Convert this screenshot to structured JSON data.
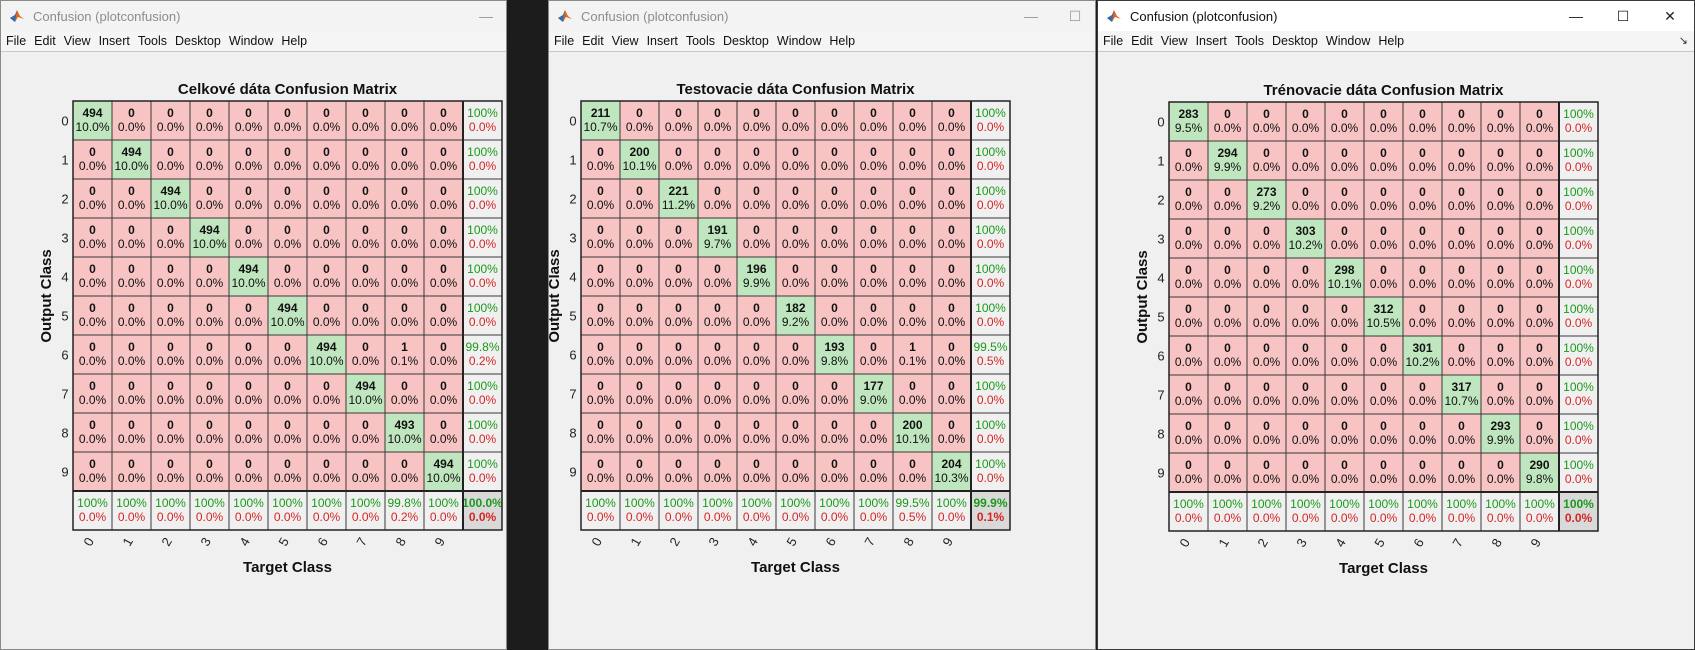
{
  "windows": [
    {
      "title": "Confusion (plotconfusion)",
      "active": false,
      "menu": [
        "File",
        "Edit",
        "View",
        "Insert",
        "Tools",
        "Desktop",
        "Window",
        "Help"
      ],
      "chart_data": {
        "type": "heatmap",
        "title": "Celkové dáta Confusion Matrix",
        "xlabel": "Target Class",
        "ylabel": "Output Class",
        "class_labels": [
          "0",
          "1",
          "2",
          "3",
          "4",
          "5",
          "6",
          "7",
          "8",
          "9"
        ],
        "counts": [
          [
            494,
            0,
            0,
            0,
            0,
            0,
            0,
            0,
            0,
            0
          ],
          [
            0,
            494,
            0,
            0,
            0,
            0,
            0,
            0,
            0,
            0
          ],
          [
            0,
            0,
            494,
            0,
            0,
            0,
            0,
            0,
            0,
            0
          ],
          [
            0,
            0,
            0,
            494,
            0,
            0,
            0,
            0,
            0,
            0
          ],
          [
            0,
            0,
            0,
            0,
            494,
            0,
            0,
            0,
            0,
            0
          ],
          [
            0,
            0,
            0,
            0,
            0,
            494,
            0,
            0,
            0,
            0
          ],
          [
            0,
            0,
            0,
            0,
            0,
            0,
            494,
            0,
            1,
            0
          ],
          [
            0,
            0,
            0,
            0,
            0,
            0,
            0,
            494,
            0,
            0
          ],
          [
            0,
            0,
            0,
            0,
            0,
            0,
            0,
            0,
            493,
            0
          ],
          [
            0,
            0,
            0,
            0,
            0,
            0,
            0,
            0,
            0,
            494
          ]
        ],
        "percents": [
          [
            "10.0%",
            "0.0%",
            "0.0%",
            "0.0%",
            "0.0%",
            "0.0%",
            "0.0%",
            "0.0%",
            "0.0%",
            "0.0%"
          ],
          [
            "0.0%",
            "10.0%",
            "0.0%",
            "0.0%",
            "0.0%",
            "0.0%",
            "0.0%",
            "0.0%",
            "0.0%",
            "0.0%"
          ],
          [
            "0.0%",
            "0.0%",
            "10.0%",
            "0.0%",
            "0.0%",
            "0.0%",
            "0.0%",
            "0.0%",
            "0.0%",
            "0.0%"
          ],
          [
            "0.0%",
            "0.0%",
            "0.0%",
            "10.0%",
            "0.0%",
            "0.0%",
            "0.0%",
            "0.0%",
            "0.0%",
            "0.0%"
          ],
          [
            "0.0%",
            "0.0%",
            "0.0%",
            "0.0%",
            "10.0%",
            "0.0%",
            "0.0%",
            "0.0%",
            "0.0%",
            "0.0%"
          ],
          [
            "0.0%",
            "0.0%",
            "0.0%",
            "0.0%",
            "0.0%",
            "10.0%",
            "0.0%",
            "0.0%",
            "0.0%",
            "0.0%"
          ],
          [
            "0.0%",
            "0.0%",
            "0.0%",
            "0.0%",
            "0.0%",
            "0.0%",
            "10.0%",
            "0.0%",
            "0.1%",
            "0.0%"
          ],
          [
            "0.0%",
            "0.0%",
            "0.0%",
            "0.0%",
            "0.0%",
            "0.0%",
            "0.0%",
            "10.0%",
            "0.0%",
            "0.0%"
          ],
          [
            "0.0%",
            "0.0%",
            "0.0%",
            "0.0%",
            "0.0%",
            "0.0%",
            "0.0%",
            "0.0%",
            "10.0%",
            "0.0%"
          ],
          [
            "0.0%",
            "0.0%",
            "0.0%",
            "0.0%",
            "0.0%",
            "0.0%",
            "0.0%",
            "0.0%",
            "0.0%",
            "10.0%"
          ]
        ],
        "row_summary": [
          [
            "100%",
            "0.0%"
          ],
          [
            "100%",
            "0.0%"
          ],
          [
            "100%",
            "0.0%"
          ],
          [
            "100%",
            "0.0%"
          ],
          [
            "100%",
            "0.0%"
          ],
          [
            "100%",
            "0.0%"
          ],
          [
            "99.8%",
            "0.2%"
          ],
          [
            "100%",
            "0.0%"
          ],
          [
            "100%",
            "0.0%"
          ],
          [
            "100%",
            "0.0%"
          ]
        ],
        "col_summary": [
          [
            "100%",
            "0.0%"
          ],
          [
            "100%",
            "0.0%"
          ],
          [
            "100%",
            "0.0%"
          ],
          [
            "100%",
            "0.0%"
          ],
          [
            "100%",
            "0.0%"
          ],
          [
            "100%",
            "0.0%"
          ],
          [
            "100%",
            "0.0%"
          ],
          [
            "100%",
            "0.0%"
          ],
          [
            "99.8%",
            "0.2%"
          ],
          [
            "100%",
            "0.0%"
          ]
        ],
        "overall": [
          "100.0%",
          "0.0%"
        ]
      }
    },
    {
      "title": "Confusion (plotconfusion)",
      "active": false,
      "menu": [
        "File",
        "Edit",
        "View",
        "Insert",
        "Tools",
        "Desktop",
        "Window",
        "Help"
      ],
      "chart_data": {
        "type": "heatmap",
        "title": "Testovacie dáta Confusion Matrix",
        "xlabel": "Target Class",
        "ylabel": "Output Class",
        "class_labels": [
          "0",
          "1",
          "2",
          "3",
          "4",
          "5",
          "6",
          "7",
          "8",
          "9"
        ],
        "counts": [
          [
            211,
            0,
            0,
            0,
            0,
            0,
            0,
            0,
            0,
            0
          ],
          [
            0,
            200,
            0,
            0,
            0,
            0,
            0,
            0,
            0,
            0
          ],
          [
            0,
            0,
            221,
            0,
            0,
            0,
            0,
            0,
            0,
            0
          ],
          [
            0,
            0,
            0,
            191,
            0,
            0,
            0,
            0,
            0,
            0
          ],
          [
            0,
            0,
            0,
            0,
            196,
            0,
            0,
            0,
            0,
            0
          ],
          [
            0,
            0,
            0,
            0,
            0,
            182,
            0,
            0,
            0,
            0
          ],
          [
            0,
            0,
            0,
            0,
            0,
            0,
            193,
            0,
            1,
            0
          ],
          [
            0,
            0,
            0,
            0,
            0,
            0,
            0,
            177,
            0,
            0
          ],
          [
            0,
            0,
            0,
            0,
            0,
            0,
            0,
            0,
            200,
            0
          ],
          [
            0,
            0,
            0,
            0,
            0,
            0,
            0,
            0,
            0,
            204
          ]
        ],
        "percents": [
          [
            "10.7%",
            "0.0%",
            "0.0%",
            "0.0%",
            "0.0%",
            "0.0%",
            "0.0%",
            "0.0%",
            "0.0%",
            "0.0%"
          ],
          [
            "0.0%",
            "10.1%",
            "0.0%",
            "0.0%",
            "0.0%",
            "0.0%",
            "0.0%",
            "0.0%",
            "0.0%",
            "0.0%"
          ],
          [
            "0.0%",
            "0.0%",
            "11.2%",
            "0.0%",
            "0.0%",
            "0.0%",
            "0.0%",
            "0.0%",
            "0.0%",
            "0.0%"
          ],
          [
            "0.0%",
            "0.0%",
            "0.0%",
            "9.7%",
            "0.0%",
            "0.0%",
            "0.0%",
            "0.0%",
            "0.0%",
            "0.0%"
          ],
          [
            "0.0%",
            "0.0%",
            "0.0%",
            "0.0%",
            "9.9%",
            "0.0%",
            "0.0%",
            "0.0%",
            "0.0%",
            "0.0%"
          ],
          [
            "0.0%",
            "0.0%",
            "0.0%",
            "0.0%",
            "0.0%",
            "9.2%",
            "0.0%",
            "0.0%",
            "0.0%",
            "0.0%"
          ],
          [
            "0.0%",
            "0.0%",
            "0.0%",
            "0.0%",
            "0.0%",
            "0.0%",
            "9.8%",
            "0.0%",
            "0.1%",
            "0.0%"
          ],
          [
            "0.0%",
            "0.0%",
            "0.0%",
            "0.0%",
            "0.0%",
            "0.0%",
            "0.0%",
            "9.0%",
            "0.0%",
            "0.0%"
          ],
          [
            "0.0%",
            "0.0%",
            "0.0%",
            "0.0%",
            "0.0%",
            "0.0%",
            "0.0%",
            "0.0%",
            "10.1%",
            "0.0%"
          ],
          [
            "0.0%",
            "0.0%",
            "0.0%",
            "0.0%",
            "0.0%",
            "0.0%",
            "0.0%",
            "0.0%",
            "0.0%",
            "10.3%"
          ]
        ],
        "row_summary": [
          [
            "100%",
            "0.0%"
          ],
          [
            "100%",
            "0.0%"
          ],
          [
            "100%",
            "0.0%"
          ],
          [
            "100%",
            "0.0%"
          ],
          [
            "100%",
            "0.0%"
          ],
          [
            "100%",
            "0.0%"
          ],
          [
            "99.5%",
            "0.5%"
          ],
          [
            "100%",
            "0.0%"
          ],
          [
            "100%",
            "0.0%"
          ],
          [
            "100%",
            "0.0%"
          ]
        ],
        "col_summary": [
          [
            "100%",
            "0.0%"
          ],
          [
            "100%",
            "0.0%"
          ],
          [
            "100%",
            "0.0%"
          ],
          [
            "100%",
            "0.0%"
          ],
          [
            "100%",
            "0.0%"
          ],
          [
            "100%",
            "0.0%"
          ],
          [
            "100%",
            "0.0%"
          ],
          [
            "100%",
            "0.0%"
          ],
          [
            "99.5%",
            "0.5%"
          ],
          [
            "100%",
            "0.0%"
          ]
        ],
        "overall": [
          "99.9%",
          "0.1%"
        ]
      }
    },
    {
      "title": "Confusion (plotconfusion)",
      "active": true,
      "menu": [
        "File",
        "Edit",
        "View",
        "Insert",
        "Tools",
        "Desktop",
        "Window",
        "Help"
      ],
      "chart_data": {
        "type": "heatmap",
        "title": "Trénovacie dáta Confusion Matrix",
        "xlabel": "Target Class",
        "ylabel": "Output Class",
        "class_labels": [
          "0",
          "1",
          "2",
          "3",
          "4",
          "5",
          "6",
          "7",
          "8",
          "9"
        ],
        "counts": [
          [
            283,
            0,
            0,
            0,
            0,
            0,
            0,
            0,
            0,
            0
          ],
          [
            0,
            294,
            0,
            0,
            0,
            0,
            0,
            0,
            0,
            0
          ],
          [
            0,
            0,
            273,
            0,
            0,
            0,
            0,
            0,
            0,
            0
          ],
          [
            0,
            0,
            0,
            303,
            0,
            0,
            0,
            0,
            0,
            0
          ],
          [
            0,
            0,
            0,
            0,
            298,
            0,
            0,
            0,
            0,
            0
          ],
          [
            0,
            0,
            0,
            0,
            0,
            312,
            0,
            0,
            0,
            0
          ],
          [
            0,
            0,
            0,
            0,
            0,
            0,
            301,
            0,
            0,
            0
          ],
          [
            0,
            0,
            0,
            0,
            0,
            0,
            0,
            317,
            0,
            0
          ],
          [
            0,
            0,
            0,
            0,
            0,
            0,
            0,
            0,
            293,
            0
          ],
          [
            0,
            0,
            0,
            0,
            0,
            0,
            0,
            0,
            0,
            290
          ]
        ],
        "percents": [
          [
            "9.5%",
            "0.0%",
            "0.0%",
            "0.0%",
            "0.0%",
            "0.0%",
            "0.0%",
            "0.0%",
            "0.0%",
            "0.0%"
          ],
          [
            "0.0%",
            "9.9%",
            "0.0%",
            "0.0%",
            "0.0%",
            "0.0%",
            "0.0%",
            "0.0%",
            "0.0%",
            "0.0%"
          ],
          [
            "0.0%",
            "0.0%",
            "9.2%",
            "0.0%",
            "0.0%",
            "0.0%",
            "0.0%",
            "0.0%",
            "0.0%",
            "0.0%"
          ],
          [
            "0.0%",
            "0.0%",
            "0.0%",
            "10.2%",
            "0.0%",
            "0.0%",
            "0.0%",
            "0.0%",
            "0.0%",
            "0.0%"
          ],
          [
            "0.0%",
            "0.0%",
            "0.0%",
            "0.0%",
            "10.1%",
            "0.0%",
            "0.0%",
            "0.0%",
            "0.0%",
            "0.0%"
          ],
          [
            "0.0%",
            "0.0%",
            "0.0%",
            "0.0%",
            "0.0%",
            "10.5%",
            "0.0%",
            "0.0%",
            "0.0%",
            "0.0%"
          ],
          [
            "0.0%",
            "0.0%",
            "0.0%",
            "0.0%",
            "0.0%",
            "0.0%",
            "10.2%",
            "0.0%",
            "0.0%",
            "0.0%"
          ],
          [
            "0.0%",
            "0.0%",
            "0.0%",
            "0.0%",
            "0.0%",
            "0.0%",
            "0.0%",
            "10.7%",
            "0.0%",
            "0.0%"
          ],
          [
            "0.0%",
            "0.0%",
            "0.0%",
            "0.0%",
            "0.0%",
            "0.0%",
            "0.0%",
            "0.0%",
            "9.9%",
            "0.0%"
          ],
          [
            "0.0%",
            "0.0%",
            "0.0%",
            "0.0%",
            "0.0%",
            "0.0%",
            "0.0%",
            "0.0%",
            "0.0%",
            "9.8%"
          ]
        ],
        "row_summary": [
          [
            "100%",
            "0.0%"
          ],
          [
            "100%",
            "0.0%"
          ],
          [
            "100%",
            "0.0%"
          ],
          [
            "100%",
            "0.0%"
          ],
          [
            "100%",
            "0.0%"
          ],
          [
            "100%",
            "0.0%"
          ],
          [
            "100%",
            "0.0%"
          ],
          [
            "100%",
            "0.0%"
          ],
          [
            "100%",
            "0.0%"
          ],
          [
            "100%",
            "0.0%"
          ]
        ],
        "col_summary": [
          [
            "100%",
            "0.0%"
          ],
          [
            "100%",
            "0.0%"
          ],
          [
            "100%",
            "0.0%"
          ],
          [
            "100%",
            "0.0%"
          ],
          [
            "100%",
            "0.0%"
          ],
          [
            "100%",
            "0.0%"
          ],
          [
            "100%",
            "0.0%"
          ],
          [
            "100%",
            "0.0%"
          ],
          [
            "100%",
            "0.0%"
          ],
          [
            "100%",
            "0.0%"
          ]
        ],
        "overall": [
          "100%",
          "0.0%"
        ]
      }
    }
  ],
  "colors": {
    "correct_cell": "#bfe6bf",
    "wrong_cell": "#f7c3c3",
    "summary_cell": "#f0f0f0",
    "overall_cell": "#d9d9d9",
    "good_text": "#1a9a1a",
    "bad_text": "#d42626",
    "grid_line": "#3a3a3a"
  },
  "icons": {
    "app": "matlab-logo-icon",
    "minimize": "minimize-icon",
    "maximize": "maximize-icon",
    "close": "close-icon",
    "dock": "dock-arrow-icon"
  }
}
